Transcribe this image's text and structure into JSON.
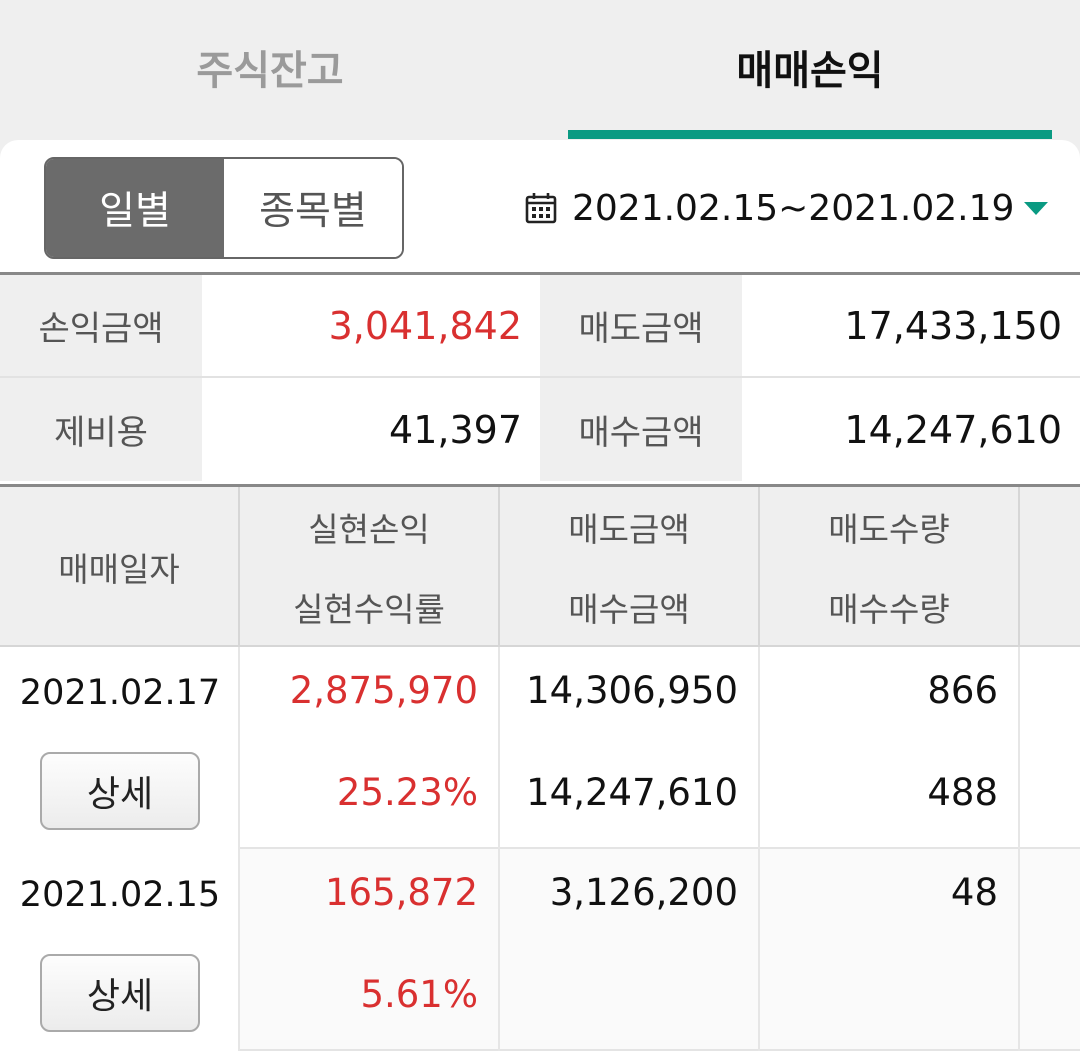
{
  "tabs": [
    {
      "label": "주식잔고",
      "active": false
    },
    {
      "label": "매매손익",
      "active": true
    }
  ],
  "segment": {
    "options": [
      "일별",
      "종목별"
    ],
    "selected": "일별"
  },
  "date_range": {
    "text": "2021.02.15~2021.02.19"
  },
  "summary": {
    "profit_loss_label": "손익금액",
    "profit_loss_value": "3,041,842",
    "sell_amount_label": "매도금액",
    "sell_amount_value": "17,433,150",
    "fees_label": "제비용",
    "fees_value": "41,397",
    "buy_amount_label": "매수금액",
    "buy_amount_value": "14,247,610"
  },
  "table": {
    "headers": {
      "trade_date": "매매일자",
      "realized_pl": "실현손익",
      "realized_rate": "실현수익률",
      "sell_amount": "매도금액",
      "buy_amount": "매수금액",
      "sell_qty": "매도수량",
      "buy_qty": "매수수량"
    },
    "rows": [
      {
        "date": "2021.02.17",
        "detail_label": "상세",
        "realized_pl": "2,875,970",
        "realized_rate": "25.23%",
        "sell_amount": "14,306,950",
        "buy_amount": "14,247,610",
        "sell_qty": "866",
        "buy_qty": "488"
      },
      {
        "date": "2021.02.15",
        "detail_label": "상세",
        "realized_pl": "165,872",
        "realized_rate": "5.61%",
        "sell_amount": "3,126,200",
        "buy_amount": "",
        "sell_qty": "48",
        "buy_qty": ""
      }
    ]
  },
  "colors": {
    "accent": "#0a9a82",
    "profit_red": "#d93030",
    "segment_active": "#6b6b6b"
  },
  "icons": {
    "calendar": "calendar-icon",
    "dropdown": "dropdown-arrow-icon"
  }
}
